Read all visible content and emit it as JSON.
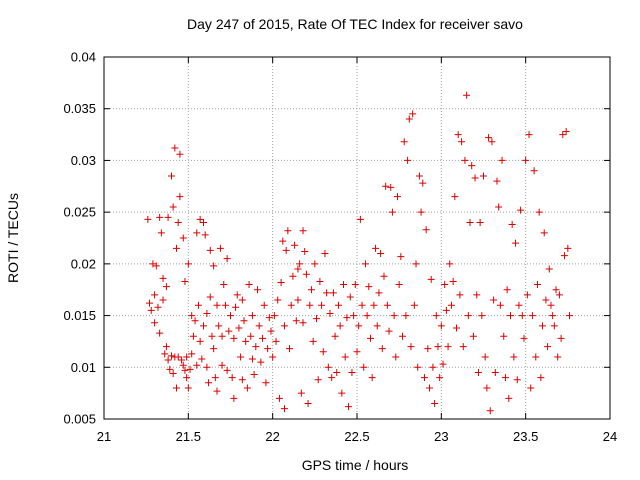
{
  "chart_data": {
    "type": "scatter",
    "title": "Day 247 of 2015, Rate Of TEC Index for receiver savo",
    "xlabel": "GPS time / hours",
    "ylabel": "ROTI / TECUs",
    "xlim": [
      21,
      24
    ],
    "ylim": [
      0.005,
      0.04
    ],
    "xticks": [
      21,
      21.5,
      22,
      22.5,
      23,
      23.5,
      24
    ],
    "xtick_labels": [
      "21",
      "21.5",
      "22",
      "22.5",
      "23",
      "23.5",
      "24"
    ],
    "yticks": [
      0.005,
      0.01,
      0.015,
      0.02,
      0.025,
      0.03,
      0.035,
      0.04
    ],
    "ytick_labels": [
      "0.005",
      "0.01",
      "0.015",
      "0.02",
      "0.025",
      "0.03",
      "0.035",
      "0.04"
    ],
    "grid": true,
    "marker": "plus",
    "color": "#dd0000",
    "points": [
      [
        21.26,
        0.0243
      ],
      [
        21.27,
        0.0162
      ],
      [
        21.28,
        0.0155
      ],
      [
        21.29,
        0.02
      ],
      [
        21.3,
        0.017
      ],
      [
        21.3,
        0.0143
      ],
      [
        21.31,
        0.0198
      ],
      [
        21.32,
        0.0158
      ],
      [
        21.33,
        0.0133
      ],
      [
        21.33,
        0.0245
      ],
      [
        21.34,
        0.023
      ],
      [
        21.35,
        0.0165
      ],
      [
        21.35,
        0.0186
      ],
      [
        21.36,
        0.0113
      ],
      [
        21.37,
        0.012
      ],
      [
        21.37,
        0.0178
      ],
      [
        21.38,
        0.0107
      ],
      [
        21.38,
        0.0245
      ],
      [
        21.39,
        0.0098
      ],
      [
        21.4,
        0.0285
      ],
      [
        21.4,
        0.0111
      ],
      [
        21.41,
        0.0255
      ],
      [
        21.41,
        0.0094
      ],
      [
        21.42,
        0.0312
      ],
      [
        21.42,
        0.011
      ],
      [
        21.43,
        0.008
      ],
      [
        21.43,
        0.0215
      ],
      [
        21.44,
        0.024
      ],
      [
        21.44,
        0.011
      ],
      [
        21.45,
        0.0306
      ],
      [
        21.45,
        0.0265
      ],
      [
        21.46,
        0.0107
      ],
      [
        21.47,
        0.0102
      ],
      [
        21.47,
        0.0225
      ],
      [
        21.48,
        0.0097
      ],
      [
        21.48,
        0.0183
      ],
      [
        21.49,
        0.011
      ],
      [
        21.49,
        0.009
      ],
      [
        21.5,
        0.008
      ],
      [
        21.5,
        0.02
      ],
      [
        21.51,
        0.0098
      ],
      [
        21.52,
        0.015
      ],
      [
        21.52,
        0.0113
      ],
      [
        21.53,
        0.013
      ],
      [
        21.54,
        0.0145
      ],
      [
        21.55,
        0.0102
      ],
      [
        21.55,
        0.023
      ],
      [
        21.56,
        0.016
      ],
      [
        21.57,
        0.0243
      ],
      [
        21.57,
        0.0125
      ],
      [
        21.58,
        0.0108
      ],
      [
        21.59,
        0.024
      ],
      [
        21.59,
        0.014
      ],
      [
        21.6,
        0.0228
      ],
      [
        21.61,
        0.01
      ],
      [
        21.61,
        0.0152
      ],
      [
        21.62,
        0.0085
      ],
      [
        21.63,
        0.0213
      ],
      [
        21.63,
        0.0168
      ],
      [
        21.64,
        0.013
      ],
      [
        21.65,
        0.0198
      ],
      [
        21.65,
        0.0118
      ],
      [
        21.66,
        0.009
      ],
      [
        21.67,
        0.0077
      ],
      [
        21.67,
        0.016
      ],
      [
        21.68,
        0.014
      ],
      [
        21.69,
        0.0215
      ],
      [
        21.7,
        0.0102
      ],
      [
        21.7,
        0.013
      ],
      [
        21.71,
        0.018
      ],
      [
        21.72,
        0.016
      ],
      [
        21.73,
        0.0205
      ],
      [
        21.73,
        0.0097
      ],
      [
        21.74,
        0.0135
      ],
      [
        21.75,
        0.015
      ],
      [
        21.76,
        0.009
      ],
      [
        21.77,
        0.0128
      ],
      [
        21.77,
        0.007
      ],
      [
        21.78,
        0.0158
      ],
      [
        21.79,
        0.017
      ],
      [
        21.8,
        0.0138
      ],
      [
        21.81,
        0.011
      ],
      [
        21.82,
        0.0165
      ],
      [
        21.82,
        0.0088
      ],
      [
        21.83,
        0.0145
      ],
      [
        21.84,
        0.0125
      ],
      [
        21.85,
        0.008
      ],
      [
        21.86,
        0.018
      ],
      [
        21.87,
        0.013
      ],
      [
        21.88,
        0.0108
      ],
      [
        21.88,
        0.015
      ],
      [
        21.89,
        0.0093
      ],
      [
        21.9,
        0.012
      ],
      [
        21.91,
        0.0175
      ],
      [
        21.92,
        0.014
      ],
      [
        21.93,
        0.0105
      ],
      [
        21.94,
        0.0128
      ],
      [
        21.95,
        0.016
      ],
      [
        21.96,
        0.0085
      ],
      [
        21.97,
        0.0118
      ],
      [
        21.98,
        0.0148
      ],
      [
        21.99,
        0.0135
      ],
      [
        22.0,
        0.011
      ],
      [
        22.01,
        0.015
      ],
      [
        22.02,
        0.0125
      ],
      [
        22.03,
        0.0165
      ],
      [
        22.04,
        0.007
      ],
      [
        22.05,
        0.0182
      ],
      [
        22.06,
        0.0222
      ],
      [
        22.07,
        0.014
      ],
      [
        22.07,
        0.006
      ],
      [
        22.08,
        0.0213
      ],
      [
        22.09,
        0.0232
      ],
      [
        22.1,
        0.0118
      ],
      [
        22.11,
        0.016
      ],
      [
        22.12,
        0.0188
      ],
      [
        22.13,
        0.0218
      ],
      [
        22.14,
        0.0145
      ],
      [
        22.15,
        0.0165
      ],
      [
        22.15,
        0.0195
      ],
      [
        22.16,
        0.02
      ],
      [
        22.17,
        0.0075
      ],
      [
        22.18,
        0.0232
      ],
      [
        22.18,
        0.0143
      ],
      [
        22.19,
        0.0212
      ],
      [
        22.2,
        0.019
      ],
      [
        22.21,
        0.0065
      ],
      [
        22.22,
        0.016
      ],
      [
        22.23,
        0.0175
      ],
      [
        22.24,
        0.0125
      ],
      [
        22.25,
        0.02
      ],
      [
        22.26,
        0.0147
      ],
      [
        22.27,
        0.0088
      ],
      [
        22.28,
        0.0183
      ],
      [
        22.29,
        0.016
      ],
      [
        22.3,
        0.0115
      ],
      [
        22.31,
        0.021
      ],
      [
        22.32,
        0.0172
      ],
      [
        22.33,
        0.01
      ],
      [
        22.34,
        0.0152
      ],
      [
        22.35,
        0.009
      ],
      [
        22.36,
        0.0172
      ],
      [
        22.37,
        0.013
      ],
      [
        22.38,
        0.0095
      ],
      [
        22.39,
        0.016
      ],
      [
        22.4,
        0.014
      ],
      [
        22.41,
        0.0075
      ],
      [
        22.42,
        0.018
      ],
      [
        22.43,
        0.011
      ],
      [
        22.44,
        0.0148
      ],
      [
        22.45,
        0.0062
      ],
      [
        22.46,
        0.0168
      ],
      [
        22.47,
        0.0095
      ],
      [
        22.48,
        0.015
      ],
      [
        22.49,
        0.018
      ],
      [
        22.5,
        0.0115
      ],
      [
        22.51,
        0.014
      ],
      [
        22.52,
        0.0243
      ],
      [
        22.53,
        0.016
      ],
      [
        22.54,
        0.01
      ],
      [
        22.55,
        0.02
      ],
      [
        22.56,
        0.015
      ],
      [
        22.57,
        0.0178
      ],
      [
        22.58,
        0.0128
      ],
      [
        22.59,
        0.009
      ],
      [
        22.6,
        0.016
      ],
      [
        22.61,
        0.0215
      ],
      [
        22.62,
        0.014
      ],
      [
        22.63,
        0.0172
      ],
      [
        22.64,
        0.021
      ],
      [
        22.65,
        0.0118
      ],
      [
        22.66,
        0.0188
      ],
      [
        22.67,
        0.0275
      ],
      [
        22.68,
        0.016
      ],
      [
        22.69,
        0.0135
      ],
      [
        22.7,
        0.0274
      ],
      [
        22.71,
        0.025
      ],
      [
        22.72,
        0.015
      ],
      [
        22.73,
        0.011
      ],
      [
        22.74,
        0.0265
      ],
      [
        22.75,
        0.018
      ],
      [
        22.76,
        0.0207
      ],
      [
        22.77,
        0.013
      ],
      [
        22.78,
        0.0318
      ],
      [
        22.79,
        0.015
      ],
      [
        22.8,
        0.03
      ],
      [
        22.81,
        0.034
      ],
      [
        22.82,
        0.012
      ],
      [
        22.83,
        0.0345
      ],
      [
        22.84,
        0.016
      ],
      [
        22.85,
        0.02
      ],
      [
        22.86,
        0.01
      ],
      [
        22.87,
        0.0285
      ],
      [
        22.88,
        0.025
      ],
      [
        22.89,
        0.0278
      ],
      [
        22.9,
        0.009
      ],
      [
        22.91,
        0.0233
      ],
      [
        22.92,
        0.0118
      ],
      [
        22.93,
        0.008
      ],
      [
        22.94,
        0.0185
      ],
      [
        22.95,
        0.01
      ],
      [
        22.96,
        0.0065
      ],
      [
        22.97,
        0.015
      ],
      [
        22.98,
        0.012
      ],
      [
        22.99,
        0.009
      ],
      [
        23.0,
        0.014
      ],
      [
        23.01,
        0.0103
      ],
      [
        23.02,
        0.018
      ],
      [
        23.03,
        0.0155
      ],
      [
        23.04,
        0.012
      ],
      [
        23.05,
        0.02
      ],
      [
        23.06,
        0.016
      ],
      [
        23.07,
        0.0183
      ],
      [
        23.08,
        0.0265
      ],
      [
        23.09,
        0.0138
      ],
      [
        23.1,
        0.0325
      ],
      [
        23.11,
        0.017
      ],
      [
        23.12,
        0.0318
      ],
      [
        23.13,
        0.012
      ],
      [
        23.14,
        0.03
      ],
      [
        23.15,
        0.0363
      ],
      [
        23.16,
        0.015
      ],
      [
        23.17,
        0.024
      ],
      [
        23.18,
        0.0295
      ],
      [
        23.19,
        0.013
      ],
      [
        23.2,
        0.0283
      ],
      [
        23.21,
        0.017
      ],
      [
        23.22,
        0.0095
      ],
      [
        23.23,
        0.024
      ],
      [
        23.24,
        0.015
      ],
      [
        23.25,
        0.0285
      ],
      [
        23.26,
        0.011
      ],
      [
        23.27,
        0.008
      ],
      [
        23.28,
        0.0322
      ],
      [
        23.29,
        0.0058
      ],
      [
        23.3,
        0.0318
      ],
      [
        23.31,
        0.0165
      ],
      [
        23.32,
        0.0095
      ],
      [
        23.33,
        0.028
      ],
      [
        23.34,
        0.0255
      ],
      [
        23.35,
        0.016
      ],
      [
        23.36,
        0.03
      ],
      [
        23.37,
        0.013
      ],
      [
        23.38,
        0.009
      ],
      [
        23.39,
        0.0175
      ],
      [
        23.4,
        0.007
      ],
      [
        23.41,
        0.015
      ],
      [
        23.42,
        0.0238
      ],
      [
        23.43,
        0.011
      ],
      [
        23.44,
        0.022
      ],
      [
        23.45,
        0.0088
      ],
      [
        23.46,
        0.016
      ],
      [
        23.47,
        0.0252
      ],
      [
        23.48,
        0.015
      ],
      [
        23.49,
        0.0128
      ],
      [
        23.5,
        0.03
      ],
      [
        23.51,
        0.017
      ],
      [
        23.52,
        0.0325
      ],
      [
        23.53,
        0.008
      ],
      [
        23.54,
        0.015
      ],
      [
        23.55,
        0.029
      ],
      [
        23.56,
        0.011
      ],
      [
        23.57,
        0.018
      ],
      [
        23.58,
        0.025
      ],
      [
        23.59,
        0.009
      ],
      [
        23.6,
        0.014
      ],
      [
        23.61,
        0.023
      ],
      [
        23.62,
        0.0165
      ],
      [
        23.63,
        0.012
      ],
      [
        23.64,
        0.0195
      ],
      [
        23.65,
        0.016
      ],
      [
        23.66,
        0.015
      ],
      [
        23.67,
        0.014
      ],
      [
        23.68,
        0.0175
      ],
      [
        23.69,
        0.011
      ],
      [
        23.7,
        0.017
      ],
      [
        23.71,
        0.0128
      ],
      [
        23.72,
        0.0325
      ],
      [
        23.73,
        0.0208
      ],
      [
        23.74,
        0.0328
      ],
      [
        23.75,
        0.0215
      ],
      [
        23.76,
        0.015
      ]
    ]
  }
}
